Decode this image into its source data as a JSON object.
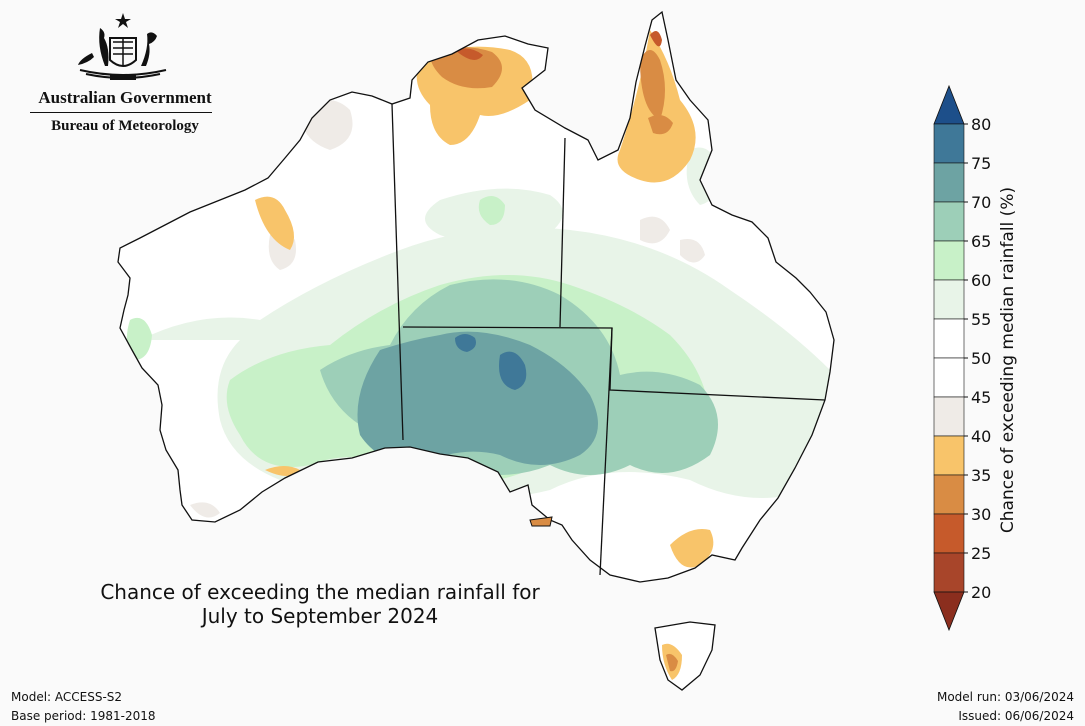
{
  "logo": {
    "government": "Australian Government",
    "bureau": "Bureau of Meteorology"
  },
  "map": {
    "title_line1": "Chance of exceeding the median rainfall for",
    "title_line2": "July to September 2024",
    "model": "Model: ACCESS-S2",
    "base_period": "Base period: 1981-2018",
    "model_run": "Model run: 03/06/2024",
    "issued": "Issued: 06/06/2024"
  },
  "colorbar": {
    "title": "Chance of exceeding median rainfall (%)",
    "ticks": [
      "20",
      "25",
      "30",
      "35",
      "40",
      "45",
      "50",
      "55",
      "60",
      "65",
      "70",
      "75",
      "80"
    ],
    "colors": {
      "below_20": "#8b2e1e",
      "20_25": "#a8452a",
      "25_30": "#c65a2b",
      "30_35": "#d98c44",
      "35_40": "#f8c46a",
      "40_45": "#efebe7",
      "45_50": "#ffffff",
      "50_55": "#ffffff",
      "55_60": "#e8f4e8",
      "60_65": "#c8f1c8",
      "65_70": "#9dcfb8",
      "70_75": "#6da3a3",
      "75_80": "#3f7898",
      "above_80": "#1d4f8a"
    }
  }
}
